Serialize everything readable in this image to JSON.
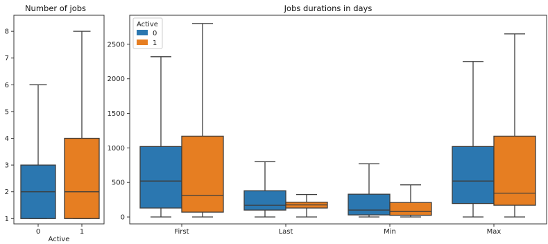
{
  "chart_data": [
    {
      "type": "box",
      "title": "Number of jobs",
      "xlabel": "Active",
      "ylabel": "",
      "categories": [
        "0",
        "1"
      ],
      "ylim": [
        0.8,
        8.6
      ],
      "yticks": [
        1,
        2,
        3,
        4,
        5,
        6,
        7,
        8
      ],
      "boxes": [
        {
          "category": "0",
          "hue": "0",
          "min": 1,
          "q1": 1,
          "median": 2,
          "q3": 3,
          "max": 6
        },
        {
          "category": "1",
          "hue": "1",
          "min": 1,
          "q1": 1,
          "median": 2,
          "q3": 4,
          "max": 8
        }
      ],
      "grid": false
    },
    {
      "type": "box",
      "title": "Jobs durations in days",
      "xlabel": "",
      "ylabel": "",
      "categories": [
        "First",
        "Last",
        "Min",
        "Max"
      ],
      "ylim": [
        -100,
        2920
      ],
      "yticks": [
        0,
        500,
        1000,
        1500,
        2000,
        2500
      ],
      "legend": {
        "title": "Active",
        "placement": "top-left",
        "entries": [
          "0",
          "1"
        ]
      },
      "boxes": [
        {
          "category": "First",
          "hue": "0",
          "min": 0,
          "q1": 130,
          "median": 520,
          "q3": 1020,
          "max": 2320
        },
        {
          "category": "First",
          "hue": "1",
          "min": 0,
          "q1": 70,
          "median": 310,
          "q3": 1170,
          "max": 2800
        },
        {
          "category": "Last",
          "hue": "0",
          "min": 0,
          "q1": 100,
          "median": 170,
          "q3": 380,
          "max": 800
        },
        {
          "category": "Last",
          "hue": "1",
          "min": 0,
          "q1": 130,
          "median": 175,
          "q3": 215,
          "max": 325
        },
        {
          "category": "Min",
          "hue": "0",
          "min": 0,
          "q1": 30,
          "median": 100,
          "q3": 330,
          "max": 770
        },
        {
          "category": "Min",
          "hue": "1",
          "min": 0,
          "q1": 25,
          "median": 80,
          "q3": 210,
          "max": 465
        },
        {
          "category": "Max",
          "hue": "0",
          "min": 0,
          "q1": 195,
          "median": 520,
          "q3": 1020,
          "max": 2250
        },
        {
          "category": "Max",
          "hue": "1",
          "min": 0,
          "q1": 170,
          "median": 345,
          "q3": 1170,
          "max": 2650
        }
      ],
      "grid": false
    }
  ],
  "colors": {
    "0": "#2b77b0",
    "1": "#e67e22"
  }
}
